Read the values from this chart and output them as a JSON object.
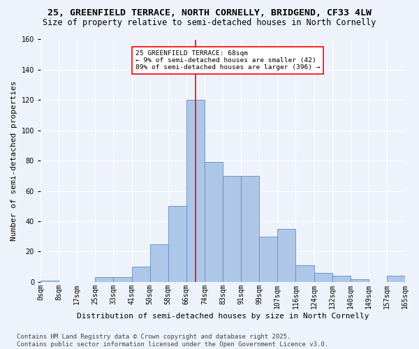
{
  "title1": "25, GREENFIELD TERRACE, NORTH CORNELLY, BRIDGEND, CF33 4LW",
  "title2": "Size of property relative to semi-detached houses in North Cornelly",
  "xlabel": "Distribution of semi-detached houses by size in North Cornelly",
  "ylabel": "Number of semi-detached properties",
  "annotation_title": "25 GREENFIELD TERRACE: 68sqm",
  "annotation_line1": "← 9% of semi-detached houses are smaller (42)",
  "annotation_line2": "89% of semi-detached houses are larger (396) →",
  "footer1": "Contains HM Land Registry data © Crown copyright and database right 2025.",
  "footer2": "Contains public sector information licensed under the Open Government Licence v3.0.",
  "bar_values": [
    1,
    0,
    0,
    3,
    3,
    10,
    25,
    50,
    120,
    79,
    70,
    70,
    30,
    35,
    11,
    6,
    4,
    2,
    0,
    4
  ],
  "bin_labels": [
    "0sqm",
    "8sqm",
    "17sqm",
    "25sqm",
    "33sqm",
    "41sqm",
    "50sqm",
    "58sqm",
    "66sqm",
    "74sqm",
    "83sqm",
    "91sqm",
    "99sqm",
    "107sqm",
    "116sqm",
    "124sqm",
    "132sqm",
    "140sqm",
    "149sqm",
    "157sqm",
    "165sqm"
  ],
  "bar_color": "#aec6e8",
  "bar_edge_color": "#6090c0",
  "vline_color": "red",
  "ylim": [
    0,
    160
  ],
  "yticks": [
    0,
    20,
    40,
    60,
    80,
    100,
    120,
    140,
    160
  ],
  "bg_color": "#eef2fb",
  "grid_color": "#ffffff",
  "title_fontsize": 9.5,
  "subtitle_fontsize": 8.5,
  "axis_label_fontsize": 8,
  "tick_fontsize": 7,
  "footer_fontsize": 6.5
}
